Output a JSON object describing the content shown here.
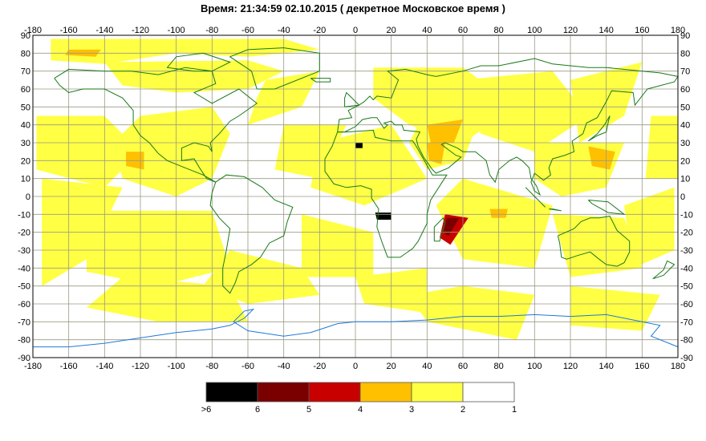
{
  "title": "Время: 21:34:59   02.10.2015  ( декретное Московское время )",
  "chart_data": {
    "type": "heatmap",
    "x_ticks": [
      -180,
      -160,
      -140,
      -120,
      -100,
      -80,
      -60,
      -40,
      -20,
      0,
      20,
      40,
      60,
      80,
      100,
      120,
      140,
      160,
      180
    ],
    "y_ticks": [
      90,
      80,
      70,
      60,
      50,
      40,
      30,
      20,
      10,
      0,
      -10,
      -20,
      -30,
      -40,
      -50,
      -60,
      -70,
      -80,
      -90
    ],
    "xlim": [
      -180,
      180
    ],
    "ylim": [
      -90,
      90
    ],
    "grid": true,
    "legend": {
      "placement": "bottom-center",
      "bins": [
        {
          "color": "#000000"
        },
        {
          "color": "#7a0000"
        },
        {
          "color": "#c80000"
        },
        {
          "color": "#ffc000"
        },
        {
          "color": "#ffff44"
        },
        {
          "color": "#ffffff"
        }
      ],
      "labels": [
        ">6",
        "6",
        "5",
        "4",
        "3",
        "2",
        "1"
      ]
    },
    "colors": {
      "land_outline": "#1a7a1a",
      "antarctic_coast": "#1e7ad8",
      "grid": "#9a9a86",
      "frame": "#000000"
    }
  }
}
